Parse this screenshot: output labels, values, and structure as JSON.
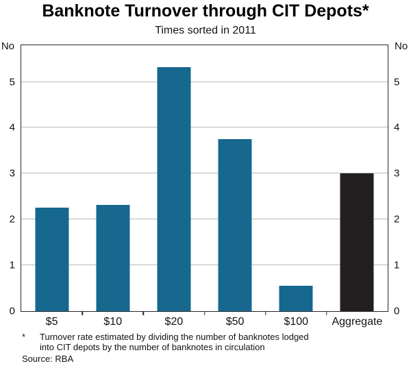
{
  "title": "Banknote Turnover through CIT Depots*",
  "subtitle": "Times sorted in 2011",
  "footnote": {
    "marker": "*",
    "lines": [
      "Turnover rate estimated by dividing the number of banknotes lodged",
      "into CIT depots by the number of banknotes in circulation"
    ]
  },
  "source": "Source: RBA",
  "colors": {
    "bar_blue": "#16688f",
    "bar_black": "#231f20",
    "grid": "#b9b9b9",
    "frame": "#262626"
  },
  "chart_data": {
    "type": "bar",
    "categories": [
      "$5",
      "$10",
      "$20",
      "$50",
      "$100",
      "Aggregate"
    ],
    "values": [
      2.25,
      2.32,
      5.32,
      3.75,
      0.55,
      3.0
    ],
    "bar_colors": [
      "#16688f",
      "#16688f",
      "#16688f",
      "#16688f",
      "#16688f",
      "#231f20"
    ],
    "title": "Banknote Turnover through CIT Depots*",
    "subtitle": "Times sorted in 2011",
    "xlabel": "",
    "ylabel_left": "No",
    "ylabel_right": "No",
    "ylim": [
      0,
      5.8
    ],
    "yticks": [
      0,
      1,
      2,
      3,
      4,
      5
    ],
    "grid": true,
    "legend": "none"
  }
}
